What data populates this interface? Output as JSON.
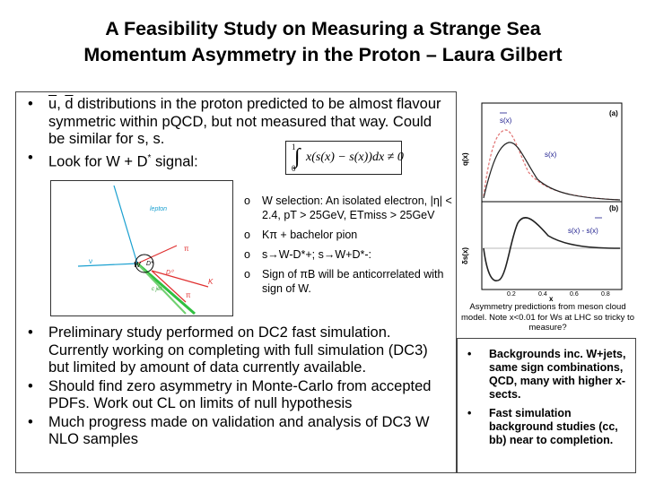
{
  "title": {
    "line1": "A Feasibility Study on Measuring a Strange Sea",
    "line2": "Momentum Asymmetry in the Proton – Laura Gilbert"
  },
  "bullets_top": [
    {
      "pre1": "u",
      "sep": ", ",
      "pre2": "d",
      "text": " distributions in the proton predicted to be almost flavour symmetric within pQCD, but not measured that way. Could be similar for s, s."
    },
    {
      "text": "Look for W + D",
      "sup": "*",
      "post": " signal:"
    }
  ],
  "formula": {
    "upper": "1",
    "lower": "0",
    "expr": "x(s(x) − s(x))dx ≠ 0"
  },
  "diagram_labels": {
    "lepton": "lepton",
    "nu": "ν",
    "W": "W",
    "Dstar": "D*",
    "D0": "D⁰",
    "pi1": "π",
    "pi2": "π",
    "K": "K",
    "cjet": "c jet"
  },
  "selection_list": [
    "W selection: An isolated electron, |η| < 2.4, pT > 25GeV, ETmiss > 25GeV",
    "Kπ + bachelor pion",
    "s→W-D*+; s→W+D*-:",
    "Sign of πB will be anticorrelated with sign of W."
  ],
  "bullets_bottom": [
    "Preliminary study performed on DC2 fast simulation. Currently working on completing with full simulation (DC3) but limited by amount of data currently available.",
    "Should find zero asymmetry in Monte-Carlo from accepted PDFs. Work out CL on limits of null hypothesis",
    "Much progress made on validation and analysis of DC3 W NLO samples"
  ],
  "plot": {
    "panel_a": "(a)",
    "panel_b": "(b)",
    "ylabel_a": "q(x)",
    "ylabel_b": "δs(x)",
    "xlabel": "x",
    "legend_sbar": "s(x)",
    "legend_s": "s(x)",
    "legend_diff": "s(x) - s(x)",
    "xticks": [
      "0.2",
      "0.4",
      "0.6",
      "0.8"
    ],
    "colors": {
      "sbar": "#e07070",
      "s": "#222222",
      "label": "#1a1a8c"
    }
  },
  "caption": "Asymmetry predictions from meson cloud model. Note x<0.01 for Ws at LHC so tricky to measure?",
  "side_list": [
    "Backgrounds inc. W+jets, same sign combinations, QCD, many with higher x-sects.",
    " Fast simulation background studies (cc, bb) near to completion."
  ]
}
